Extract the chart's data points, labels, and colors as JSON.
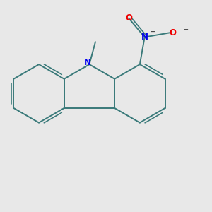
{
  "background_color": "#e8e8e8",
  "bond_color": "#3a7a7a",
  "N_color": "#0000ee",
  "O_color": "#ee0000",
  "dark_color": "#444444",
  "bond_width": 1.4,
  "figsize": [
    3.0,
    3.0
  ],
  "dpi": 100,
  "xlim": [
    -4.5,
    5.5
  ],
  "ylim": [
    -4.5,
    4.5
  ]
}
